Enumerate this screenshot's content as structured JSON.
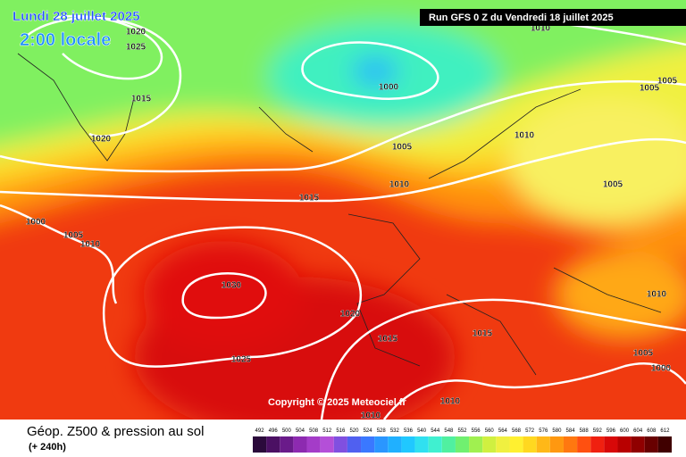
{
  "header": {
    "date": "Lundi 28 juillet 2025",
    "time": "2:00 locale",
    "run": "Run GFS 0 Z du Vendredi 18 juillet 2025"
  },
  "isobar_labels": [
    1020,
    1025,
    1015,
    1020,
    1000,
    1005,
    1010,
    1015,
    1010,
    1005,
    1005,
    1005,
    1010,
    1000,
    1005,
    1010,
    1030,
    1020,
    1015,
    1015,
    1025,
    1010,
    1005,
    1000,
    1010,
    1010
  ],
  "copyright": "Copyright © 2025 Meteociel.fr",
  "footer": {
    "title": "Géop. Z500 & pression au sol",
    "lead": "(+ 240h)"
  },
  "legend": {
    "values": [
      492,
      496,
      500,
      504,
      508,
      512,
      516,
      520,
      524,
      528,
      532,
      536,
      540,
      544,
      548,
      552,
      556,
      560,
      564,
      568,
      572,
      576,
      580,
      584,
      588,
      592,
      596,
      600,
      604,
      608,
      612
    ],
    "colors": [
      "#2b0a3b",
      "#4b1063",
      "#6a1b8a",
      "#8d2ab0",
      "#a43cc8",
      "#b44fd8",
      "#8050e0",
      "#5060f0",
      "#3a78ff",
      "#2a96ff",
      "#20b0ff",
      "#20c8ff",
      "#30e0f0",
      "#40f0d0",
      "#50f0a0",
      "#70f070",
      "#a0f050",
      "#d0f040",
      "#f0f040",
      "#fff030",
      "#ffd820",
      "#ffb818",
      "#ff9810",
      "#ff7810",
      "#ff5010",
      "#f02010",
      "#d80808",
      "#b80000",
      "#900000",
      "#680000",
      "#400000"
    ]
  }
}
